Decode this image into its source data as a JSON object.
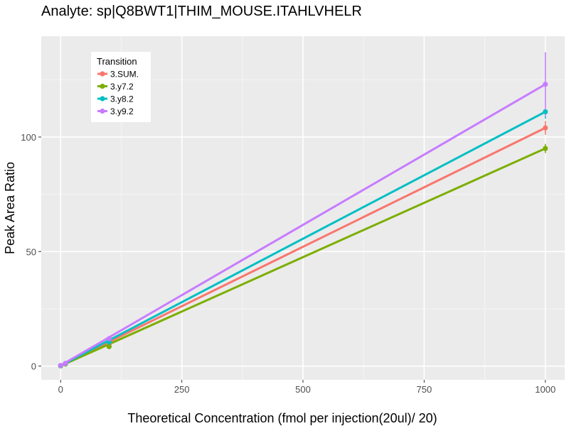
{
  "chart_data": {
    "type": "line",
    "title": "Analyte: sp|Q8BWT1|THIM_MOUSE.ITAHLVHELR",
    "xlabel": "Theoretical Concentration (fmol per injection(20ul)/ 20)",
    "ylabel": "Peak Area Ratio",
    "xlim": [
      -40,
      1040
    ],
    "ylim": [
      -6,
      144
    ],
    "x_ticks": [
      0,
      250,
      500,
      750,
      1000
    ],
    "x_tick_labels": [
      "0",
      "250",
      "500",
      "750",
      "1000"
    ],
    "y_ticks": [
      0,
      50,
      100
    ],
    "y_tick_labels": [
      "0",
      "50",
      "100"
    ],
    "grid": true,
    "legend_title": "Transition",
    "legend_position": "top-left",
    "series": [
      {
        "name": "3.SUM.",
        "color": "#F8766D",
        "points": [
          {
            "x": 0,
            "y": 0.2
          },
          {
            "x": 10,
            "y": 1.0
          },
          {
            "x": 100,
            "y": 9.5
          },
          {
            "x": 1000,
            "y": 104.0,
            "err": 3
          }
        ],
        "fit": [
          [
            0,
            0.2
          ],
          [
            1000,
            104.0
          ]
        ]
      },
      {
        "name": "3.y7.2",
        "color": "#7CAE00",
        "points": [
          {
            "x": 0,
            "y": 0.1
          },
          {
            "x": 10,
            "y": 0.9
          },
          {
            "x": 100,
            "y": 8.5
          },
          {
            "x": 1000,
            "y": 95.0,
            "err": 2
          }
        ],
        "fit": [
          [
            0,
            0.1
          ],
          [
            1000,
            95.0
          ]
        ]
      },
      {
        "name": "3.y8.2",
        "color": "#00BFC4",
        "points": [
          {
            "x": 0,
            "y": 0.2
          },
          {
            "x": 10,
            "y": 1.1
          },
          {
            "x": 100,
            "y": 10.5
          },
          {
            "x": 1000,
            "y": 111.0,
            "err": 3
          }
        ],
        "fit": [
          [
            0,
            0.2
          ],
          [
            1000,
            111.0
          ]
        ]
      },
      {
        "name": "3.y9.2",
        "color": "#C77CFF",
        "points": [
          {
            "x": 0,
            "y": 0.3
          },
          {
            "x": 10,
            "y": 1.2
          },
          {
            "x": 100,
            "y": 12.0
          },
          {
            "x": 1000,
            "y": 123.0,
            "err": 14
          }
        ],
        "fit": [
          [
            0,
            0.3
          ],
          [
            1000,
            123.0
          ]
        ]
      }
    ]
  }
}
